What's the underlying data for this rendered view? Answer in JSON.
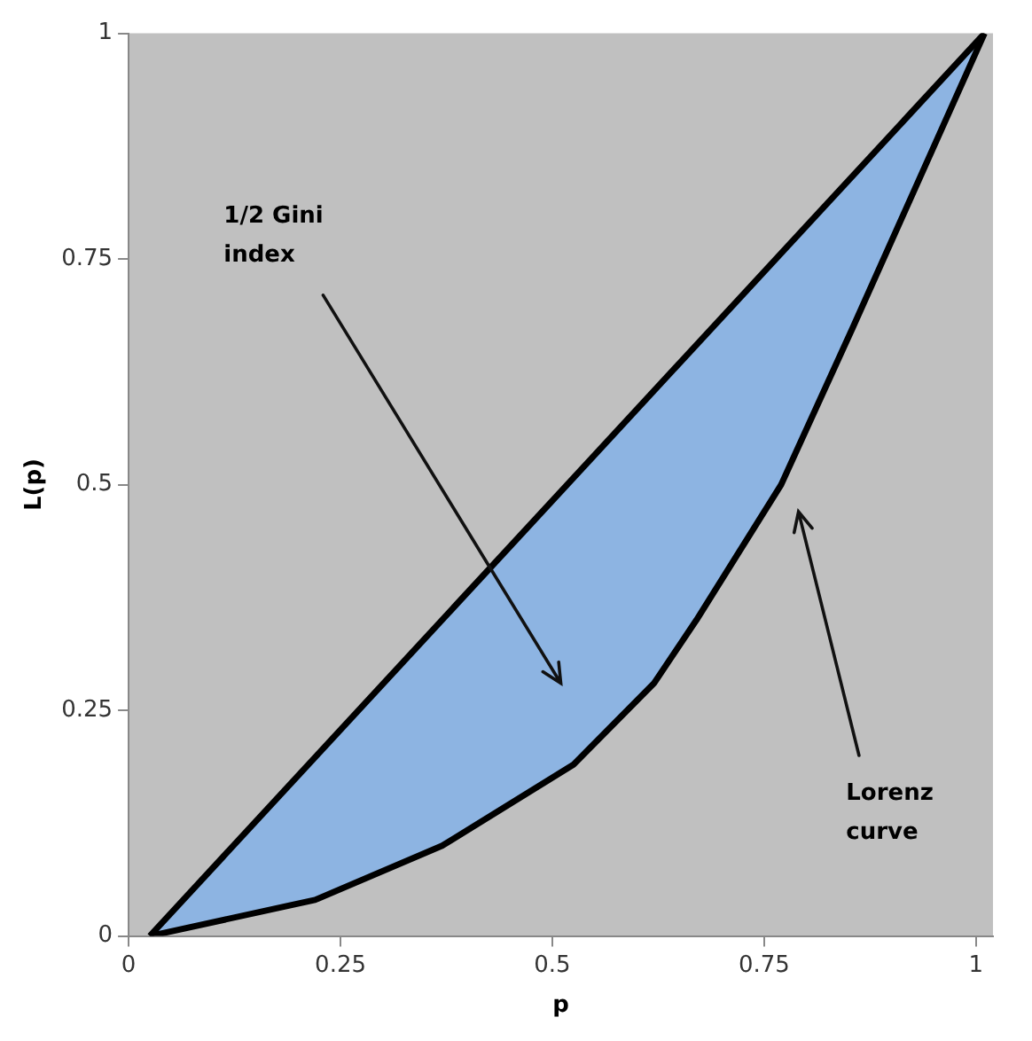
{
  "chart_data": {
    "type": "line",
    "xlabel": "p",
    "ylabel": "L(p)",
    "series": [
      {
        "color": "#000000",
        "x": [
          0.025,
          1.01
        ],
        "values": [
          0,
          1
        ]
      },
      {
        "color": "#000000",
        "x": [
          0.025,
          0.22,
          0.37,
          0.525,
          0.62,
          0.67,
          0.77,
          0.855,
          1.01
        ],
        "values": [
          0,
          0.04,
          0.1,
          0.19,
          0.28,
          0.35,
          0.5,
          0.675,
          1
        ],
        "lower": [
          0,
          0.04,
          0.1,
          0.19,
          0.28,
          0.35,
          0.5,
          0.675,
          1
        ],
        "upper": [
          0,
          0.2,
          0.35,
          0.51,
          0.6,
          0.65,
          0.76,
          0.84,
          1
        ]
      }
    ],
    "xlim": [
      0,
      1.02
    ],
    "ylim": [
      0,
      1
    ],
    "xticks": [
      0,
      0.25,
      0.5,
      0.75,
      1
    ],
    "yticks": [
      0,
      0.25,
      0.5,
      0.75,
      1
    ],
    "grid": false,
    "legend": false,
    "annotations": [
      "1/2 Gini index",
      "Lorenz curve"
    ]
  }
}
